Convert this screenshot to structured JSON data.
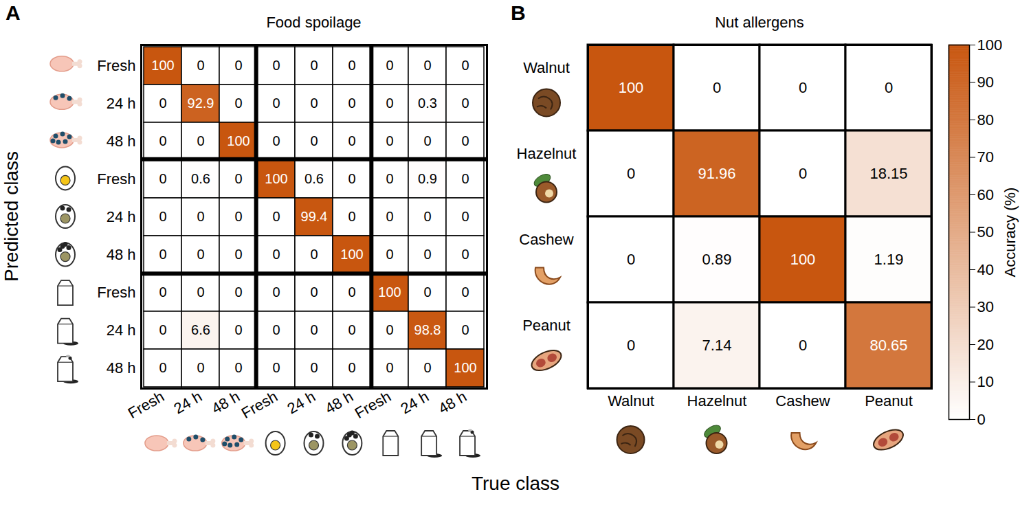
{
  "chart_data": {
    "type": "heatmap",
    "x_label": "True class",
    "y_label": "Predicted class",
    "data_labels": true,
    "colorbar": {
      "label": "Accuracy (%)",
      "range": [
        0,
        100
      ],
      "ticks": [
        0,
        10,
        20,
        30,
        40,
        50,
        60,
        70,
        80,
        90,
        100
      ]
    },
    "panels": [
      {
        "panel_label": "A",
        "title": "Food spoilage",
        "x_categories": [
          "Fresh",
          "24 h",
          "48 h",
          "Fresh",
          "24 h",
          "48 h",
          "Fresh",
          "24 h",
          "48 h"
        ],
        "y_categories": [
          "Fresh",
          "24 h",
          "48 h",
          "Fresh",
          "24 h",
          "48 h",
          "Fresh",
          "24 h",
          "48 h"
        ],
        "cells": [
          [
            100,
            0,
            0,
            0,
            0,
            0,
            0,
            0,
            0
          ],
          [
            0,
            92.9,
            0,
            0,
            0,
            0,
            0,
            0.3,
            0
          ],
          [
            0,
            0,
            100,
            0,
            0,
            0,
            0,
            0,
            0
          ],
          [
            0,
            0.6,
            0,
            100,
            0.6,
            0,
            0,
            0.9,
            0
          ],
          [
            0,
            0,
            0,
            0,
            99.4,
            0,
            0,
            0,
            0
          ],
          [
            0,
            0,
            0,
            0,
            0,
            100,
            0,
            0,
            0
          ],
          [
            0,
            0,
            0,
            0,
            0,
            0,
            100,
            0,
            0
          ],
          [
            0,
            6.6,
            0,
            0,
            0,
            0,
            0,
            98.8,
            0
          ],
          [
            0,
            0,
            0,
            0,
            0,
            0,
            0,
            0,
            100
          ]
        ]
      },
      {
        "panel_label": "B",
        "title": "Nut allergens",
        "x_categories": [
          "Walnut",
          "Hazelnut",
          "Cashew",
          "Peanut"
        ],
        "y_categories": [
          "Walnut",
          "Hazelnut",
          "Cashew",
          "Peanut"
        ],
        "cells": [
          [
            100,
            0,
            0,
            0
          ],
          [
            0,
            91.96,
            0,
            18.15
          ],
          [
            0,
            0.89,
            100,
            1.19
          ],
          [
            0,
            7.14,
            0,
            80.65
          ]
        ]
      }
    ]
  }
}
